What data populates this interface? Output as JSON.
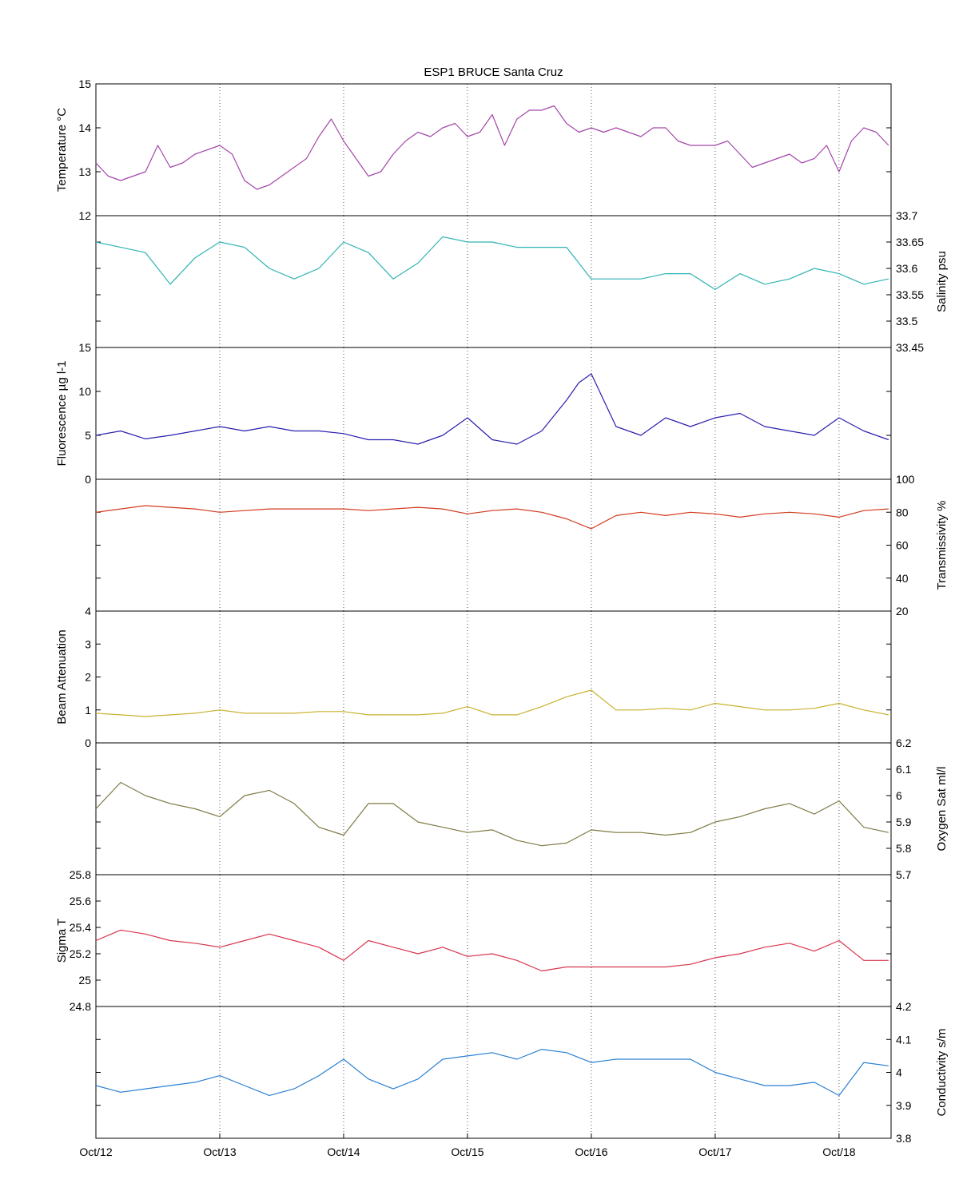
{
  "title": "ESP1 BRUCE Santa Cruz",
  "x_ticks": [
    "Oct/12",
    "Oct/13",
    "Oct/14",
    "Oct/15",
    "Oct/16",
    "Oct/17",
    "Oct/18"
  ],
  "chart_data": [
    {
      "type": "line",
      "ylabel": "Temperature °C",
      "axis_side": "left",
      "ylim": [
        12,
        15
      ],
      "yticks": [
        12,
        13,
        14,
        15
      ],
      "color": "#a347a8",
      "x": [
        0,
        0.1,
        0.2,
        0.3,
        0.4,
        0.5,
        0.6,
        0.7,
        0.8,
        0.9,
        1.0,
        1.1,
        1.2,
        1.3,
        1.4,
        1.5,
        1.6,
        1.7,
        1.8,
        1.9,
        2.0,
        2.1,
        2.2,
        2.3,
        2.4,
        2.5,
        2.6,
        2.7,
        2.8,
        2.9,
        3.0,
        3.1,
        3.2,
        3.3,
        3.4,
        3.5,
        3.6,
        3.7,
        3.8,
        3.9,
        4.0,
        4.1,
        4.2,
        4.3,
        4.4,
        4.5,
        4.6,
        4.7,
        4.8,
        4.9,
        5.0,
        5.1,
        5.2,
        5.3,
        5.4,
        5.5,
        5.6,
        5.7,
        5.8,
        5.9,
        6.0,
        6.1,
        6.2,
        6.3,
        6.4
      ],
      "y": [
        13.2,
        12.9,
        12.8,
        12.9,
        13.0,
        13.6,
        13.1,
        13.2,
        13.4,
        13.5,
        13.6,
        13.4,
        12.8,
        12.6,
        12.7,
        12.9,
        13.1,
        13.3,
        13.8,
        14.2,
        13.7,
        13.3,
        12.9,
        13.0,
        13.4,
        13.7,
        13.9,
        13.8,
        14.0,
        14.1,
        13.8,
        13.9,
        14.3,
        13.6,
        14.2,
        14.4,
        14.4,
        14.5,
        14.1,
        13.9,
        14.0,
        13.9,
        14.0,
        13.9,
        13.8,
        14.0,
        14.0,
        13.7,
        13.6,
        13.6,
        13.6,
        13.7,
        13.4,
        13.1,
        13.2,
        13.3,
        13.4,
        13.2,
        13.3,
        13.6,
        13.0,
        13.7,
        14.0,
        13.9,
        13.6
      ]
    },
    {
      "type": "line",
      "ylabel": "Salinity psu",
      "axis_side": "right",
      "ylim": [
        33.45,
        33.7
      ],
      "yticks": [
        33.45,
        33.5,
        33.55,
        33.6,
        33.65,
        33.7
      ],
      "color": "#2fb3b3",
      "x": [
        0,
        0.2,
        0.4,
        0.6,
        0.8,
        1.0,
        1.2,
        1.4,
        1.6,
        1.8,
        2.0,
        2.2,
        2.4,
        2.6,
        2.8,
        3.0,
        3.2,
        3.4,
        3.6,
        3.8,
        4.0,
        4.2,
        4.4,
        4.6,
        4.8,
        5.0,
        5.2,
        5.4,
        5.6,
        5.8,
        6.0,
        6.2,
        6.4
      ],
      "y": [
        33.65,
        33.64,
        33.63,
        33.57,
        33.62,
        33.65,
        33.64,
        33.6,
        33.58,
        33.6,
        33.65,
        33.63,
        33.58,
        33.61,
        33.66,
        33.65,
        33.65,
        33.64,
        33.64,
        33.64,
        33.58,
        33.58,
        33.58,
        33.59,
        33.59,
        33.56,
        33.59,
        33.57,
        33.58,
        33.6,
        33.59,
        33.57,
        33.58
      ]
    },
    {
      "type": "line",
      "ylabel": "Fluorescence µg l-1",
      "axis_side": "left",
      "ylim": [
        0,
        15
      ],
      "yticks": [
        0,
        5,
        10,
        15
      ],
      "color": "#2a1fae",
      "x": [
        0,
        0.2,
        0.4,
        0.6,
        0.8,
        1.0,
        1.2,
        1.4,
        1.6,
        1.8,
        2.0,
        2.2,
        2.4,
        2.6,
        2.8,
        3.0,
        3.2,
        3.4,
        3.6,
        3.8,
        3.9,
        4.0,
        4.2,
        4.4,
        4.6,
        4.8,
        5.0,
        5.2,
        5.4,
        5.6,
        5.8,
        6.0,
        6.2,
        6.4
      ],
      "y": [
        5,
        5.5,
        4.6,
        5.0,
        5.5,
        6.0,
        5.5,
        6.0,
        5.5,
        5.5,
        5.2,
        4.5,
        4.5,
        4.0,
        5.0,
        7.0,
        4.5,
        4.0,
        5.5,
        9.0,
        11.0,
        12.0,
        6.0,
        5.0,
        7.0,
        6.0,
        7.0,
        7.5,
        6.0,
        5.5,
        5.0,
        7.0,
        5.5,
        4.5
      ]
    },
    {
      "type": "line",
      "ylabel": "Transmissivity %",
      "axis_side": "right",
      "ylim": [
        20,
        100
      ],
      "yticks": [
        20,
        40,
        60,
        80,
        100
      ],
      "color": "#d23a1e",
      "x": [
        0,
        0.2,
        0.4,
        0.6,
        0.8,
        1.0,
        1.2,
        1.4,
        1.6,
        1.8,
        2.0,
        2.2,
        2.4,
        2.6,
        2.8,
        3.0,
        3.2,
        3.4,
        3.6,
        3.8,
        4.0,
        4.2,
        4.4,
        4.6,
        4.8,
        5.0,
        5.2,
        5.4,
        5.6,
        5.8,
        6.0,
        6.2,
        6.4
      ],
      "y": [
        80,
        82,
        84,
        83,
        82,
        80,
        81,
        82,
        82,
        82,
        82,
        81,
        82,
        83,
        82,
        79,
        81,
        82,
        80,
        76,
        70,
        78,
        80,
        78,
        80,
        79,
        77,
        79,
        80,
        79,
        77,
        81,
        82
      ]
    },
    {
      "type": "line",
      "ylabel": "Beam Attenuation",
      "axis_side": "left",
      "ylim": [
        0,
        4
      ],
      "yticks": [
        0,
        1,
        2,
        3,
        4
      ],
      "color": "#c8b22e",
      "x": [
        0,
        0.2,
        0.4,
        0.6,
        0.8,
        1.0,
        1.2,
        1.4,
        1.6,
        1.8,
        2.0,
        2.2,
        2.4,
        2.6,
        2.8,
        3.0,
        3.2,
        3.4,
        3.6,
        3.8,
        4.0,
        4.2,
        4.4,
        4.6,
        4.8,
        5.0,
        5.2,
        5.4,
        5.6,
        5.8,
        6.0,
        6.2,
        6.4
      ],
      "y": [
        0.9,
        0.85,
        0.8,
        0.85,
        0.9,
        1.0,
        0.9,
        0.9,
        0.9,
        0.95,
        0.95,
        0.85,
        0.85,
        0.85,
        0.9,
        1.1,
        0.85,
        0.85,
        1.1,
        1.4,
        1.6,
        1.0,
        1.0,
        1.05,
        1.0,
        1.2,
        1.1,
        1.0,
        1.0,
        1.05,
        1.2,
        1.0,
        0.85
      ]
    },
    {
      "type": "line",
      "ylabel": "Oxygen Sat ml/l",
      "axis_side": "right",
      "ylim": [
        5.7,
        6.2
      ],
      "yticks": [
        5.7,
        5.8,
        5.9,
        6.0,
        6.1,
        6.2
      ],
      "color": "#7e7a43",
      "x": [
        0,
        0.2,
        0.4,
        0.6,
        0.8,
        1.0,
        1.2,
        1.4,
        1.6,
        1.8,
        2.0,
        2.2,
        2.4,
        2.6,
        2.8,
        3.0,
        3.2,
        3.4,
        3.6,
        3.8,
        4.0,
        4.2,
        4.4,
        4.6,
        4.8,
        5.0,
        5.2,
        5.4,
        5.6,
        5.8,
        6.0,
        6.2,
        6.4
      ],
      "y": [
        5.95,
        6.05,
        6.0,
        5.97,
        5.95,
        5.92,
        6.0,
        6.02,
        5.97,
        5.88,
        5.85,
        5.97,
        5.97,
        5.9,
        5.88,
        5.86,
        5.87,
        5.83,
        5.81,
        5.82,
        5.87,
        5.86,
        5.86,
        5.85,
        5.86,
        5.9,
        5.92,
        5.95,
        5.97,
        5.93,
        5.98,
        5.88,
        5.86
      ]
    },
    {
      "type": "line",
      "ylabel": "Sigma T",
      "axis_side": "left",
      "ylim": [
        24.8,
        25.8
      ],
      "yticks": [
        24.8,
        25,
        25.2,
        25.4,
        25.6,
        25.8
      ],
      "color": "#d9344d",
      "x": [
        0,
        0.2,
        0.4,
        0.6,
        0.8,
        1.0,
        1.2,
        1.4,
        1.6,
        1.8,
        2.0,
        2.2,
        2.4,
        2.6,
        2.8,
        3.0,
        3.2,
        3.4,
        3.6,
        3.8,
        4.0,
        4.2,
        4.4,
        4.6,
        4.8,
        5.0,
        5.2,
        5.4,
        5.6,
        5.8,
        6.0,
        6.2,
        6.4
      ],
      "y": [
        25.3,
        25.38,
        25.35,
        25.3,
        25.28,
        25.25,
        25.3,
        25.35,
        25.3,
        25.25,
        25.15,
        25.3,
        25.25,
        25.2,
        25.25,
        25.18,
        25.2,
        25.15,
        25.07,
        25.1,
        25.1,
        25.1,
        25.1,
        25.1,
        25.12,
        25.17,
        25.2,
        25.25,
        25.28,
        25.22,
        25.3,
        25.15,
        25.15
      ]
    },
    {
      "type": "line",
      "ylabel": "Conductivity s/m",
      "axis_side": "right",
      "ylim": [
        3.8,
        4.2
      ],
      "yticks": [
        3.8,
        3.9,
        4.0,
        4.1,
        4.2
      ],
      "color": "#2a7fd4",
      "x": [
        0,
        0.2,
        0.4,
        0.6,
        0.8,
        1.0,
        1.2,
        1.4,
        1.6,
        1.8,
        2.0,
        2.2,
        2.4,
        2.6,
        2.8,
        3.0,
        3.2,
        3.4,
        3.6,
        3.8,
        4.0,
        4.2,
        4.4,
        4.6,
        4.8,
        5.0,
        5.2,
        5.4,
        5.6,
        5.8,
        6.0,
        6.2,
        6.4
      ],
      "y": [
        3.96,
        3.94,
        3.95,
        3.96,
        3.97,
        3.99,
        3.96,
        3.93,
        3.95,
        3.99,
        4.04,
        3.98,
        3.95,
        3.98,
        4.04,
        4.05,
        4.06,
        4.04,
        4.07,
        4.06,
        4.03,
        4.04,
        4.04,
        4.04,
        4.04,
        4.0,
        3.98,
        3.96,
        3.96,
        3.97,
        3.93,
        4.03,
        4.02
      ]
    }
  ]
}
